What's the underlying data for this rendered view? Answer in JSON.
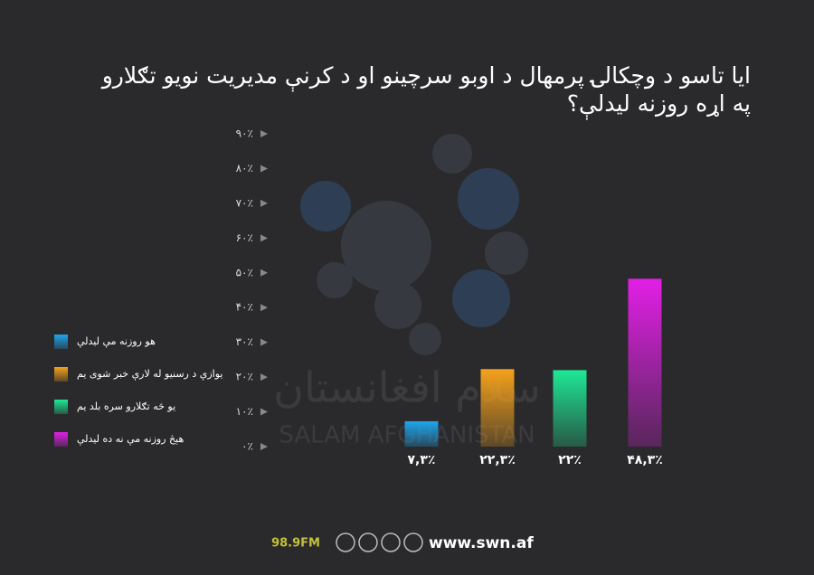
{
  "chart_data": {
    "type": "bar",
    "title": "ایا تاسو د وچکالۍ پرمهال د اوبو سرچینو او د کرنې مدیریت نویو تګلارو په اړه روزنه لیدلې؟",
    "categories": [
      "هو روزنه مې لیدلې",
      "یوازې د رسنیو له لارې خبر شوی یم",
      "یو څه تګلارو سره بلد یم",
      "هېڅ روزنه مې نه ده لیدلې"
    ],
    "values": [
      7.3,
      22.3,
      22,
      48.3
    ],
    "value_labels": [
      "۷,۳٪",
      "۲۲,۳٪",
      "۲۲٪",
      "۴۸,۳٪"
    ],
    "colors": [
      "#1ea6ee",
      "#f5a21c",
      "#1ee896",
      "#e21fe6"
    ],
    "ylim": [
      0,
      90
    ],
    "yticks": [
      {
        "value": 0,
        "label": "۰٪"
      },
      {
        "value": 10,
        "label": "۱۰٪"
      },
      {
        "value": 20,
        "label": "۲۰٪"
      },
      {
        "value": 30,
        "label": "۳۰٪"
      },
      {
        "value": 40,
        "label": "۴۰٪"
      },
      {
        "value": 50,
        "label": "۵۰٪"
      },
      {
        "value": 60,
        "label": "۶۰٪"
      },
      {
        "value": 70,
        "label": "۷۰٪"
      },
      {
        "value": 80,
        "label": "۸۰٪"
      },
      {
        "value": 90,
        "label": "۹۰٪"
      }
    ],
    "legend": "left"
  },
  "watermark": {
    "native": "سلام افغانستان",
    "latin": "SALAM AFGHANISTAN"
  },
  "footer": {
    "frequency": "98.9FM",
    "website": "www.swn.af"
  }
}
